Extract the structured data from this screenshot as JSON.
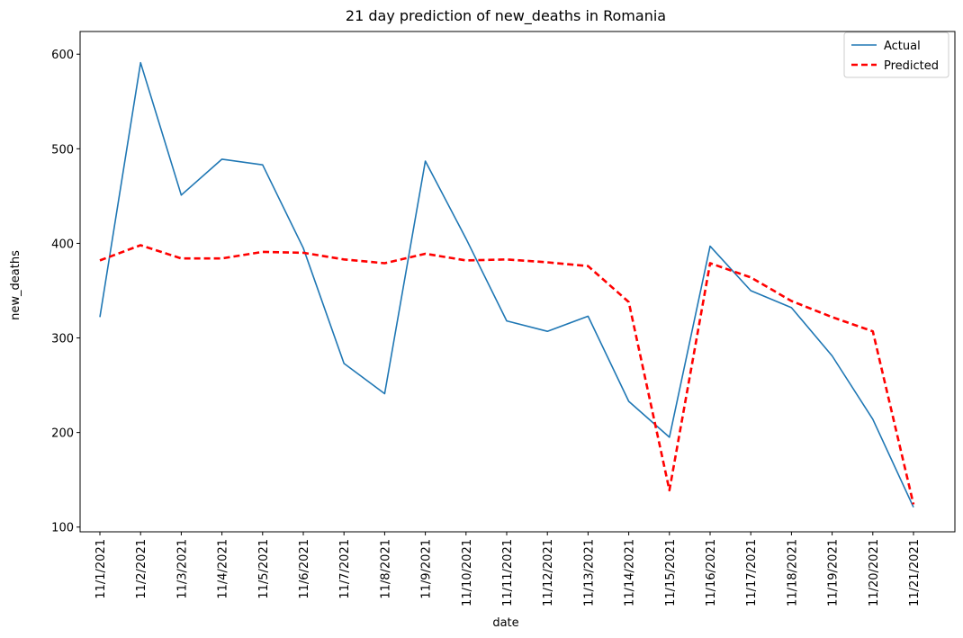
{
  "chart_data": {
    "type": "line",
    "title": "21 day prediction of new_deaths in Romania",
    "xlabel": "date",
    "ylabel": "new_deaths",
    "categories": [
      "11/1/2021",
      "11/2/2021",
      "11/3/2021",
      "11/4/2021",
      "11/5/2021",
      "11/6/2021",
      "11/7/2021",
      "11/8/2021",
      "11/9/2021",
      "11/10/2021",
      "11/11/2021",
      "11/12/2021",
      "11/13/2021",
      "11/14/2021",
      "11/15/2021",
      "11/16/2021",
      "11/17/2021",
      "11/18/2021",
      "11/19/2021",
      "11/20/2021",
      "11/21/2021"
    ],
    "ylim": [
      95,
      624
    ],
    "yticks": [
      100,
      200,
      300,
      400,
      500,
      600
    ],
    "grid": false,
    "legend_position": "top-right",
    "series": [
      {
        "name": "Actual",
        "color": "#1f77b4",
        "style": "solid",
        "values": [
          322,
          591,
          451,
          489,
          483,
          395,
          273,
          241,
          487,
          405,
          318,
          307,
          323,
          233,
          195,
          397,
          350,
          332,
          281,
          214,
          121
        ]
      },
      {
        "name": "Predicted",
        "color": "#ff0000",
        "style": "dashed",
        "values": [
          382,
          398,
          384,
          384,
          391,
          390,
          383,
          379,
          389,
          382,
          383,
          380,
          376,
          338,
          139,
          379,
          364,
          339,
          322,
          307,
          124
        ]
      }
    ]
  }
}
